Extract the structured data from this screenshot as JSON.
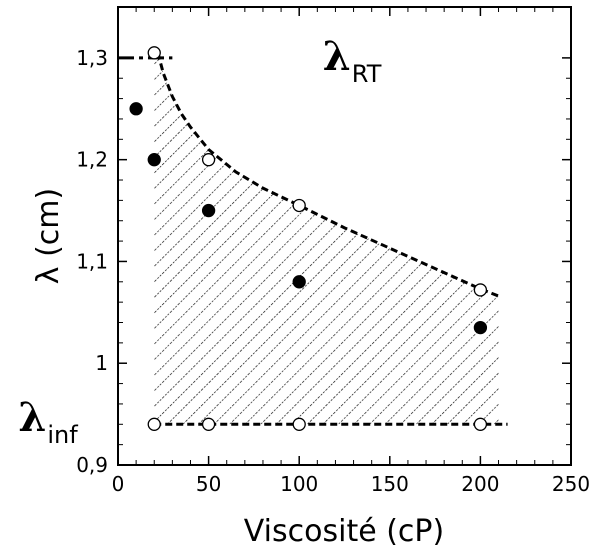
{
  "chart_data": {
    "type": "scatter",
    "xlabel": "Viscosité (cP)",
    "ylabel": "λ (cm)",
    "xlim": [
      0,
      250
    ],
    "ylim": [
      0.9,
      1.35
    ],
    "xticks": [
      0,
      50,
      100,
      150,
      200,
      250
    ],
    "yticks": [
      0.9,
      1.0,
      1.1,
      1.2,
      1.3
    ],
    "ytick_labels": [
      "0,9",
      "1",
      "1,1",
      "1,2",
      "1,3"
    ],
    "grid": false,
    "series": [
      {
        "marker": "filled-circle",
        "x": [
          10,
          20,
          50,
          100,
          200
        ],
        "y": [
          1.25,
          1.2,
          1.15,
          1.08,
          1.035
        ]
      },
      {
        "marker": "open-circle",
        "x": [
          20,
          50,
          100,
          200
        ],
        "y": [
          1.305,
          1.2,
          1.155,
          1.072
        ]
      },
      {
        "marker": "open-circle",
        "x": [
          20,
          50,
          100,
          200
        ],
        "y": [
          0.94,
          0.94,
          0.94,
          0.94
        ]
      }
    ],
    "curves": [
      {
        "style": "dash-dot",
        "x": [
          0,
          30
        ],
        "y": [
          1.3,
          1.3
        ]
      },
      {
        "style": "dashed",
        "x": [
          22,
          25,
          30,
          35,
          40,
          50,
          65,
          80,
          100,
          125,
          150,
          175,
          200,
          210
        ],
        "y": [
          1.305,
          1.285,
          1.262,
          1.245,
          1.232,
          1.21,
          1.188,
          1.172,
          1.155,
          1.133,
          1.113,
          1.093,
          1.073,
          1.066
        ]
      },
      {
        "style": "dashed",
        "x": [
          20,
          215
        ],
        "y": [
          0.94,
          0.94
        ]
      }
    ],
    "hatched_region": {
      "x_range": [
        20,
        210
      ],
      "lower_y": 0.94,
      "upper_curve": "dashed"
    },
    "annotations": [
      {
        "main": "λ",
        "subscript": "RT",
        "x": 113,
        "y": 1.3
      },
      {
        "main": "λ",
        "subscript": "inf",
        "x": -55,
        "y": 0.945
      }
    ]
  }
}
